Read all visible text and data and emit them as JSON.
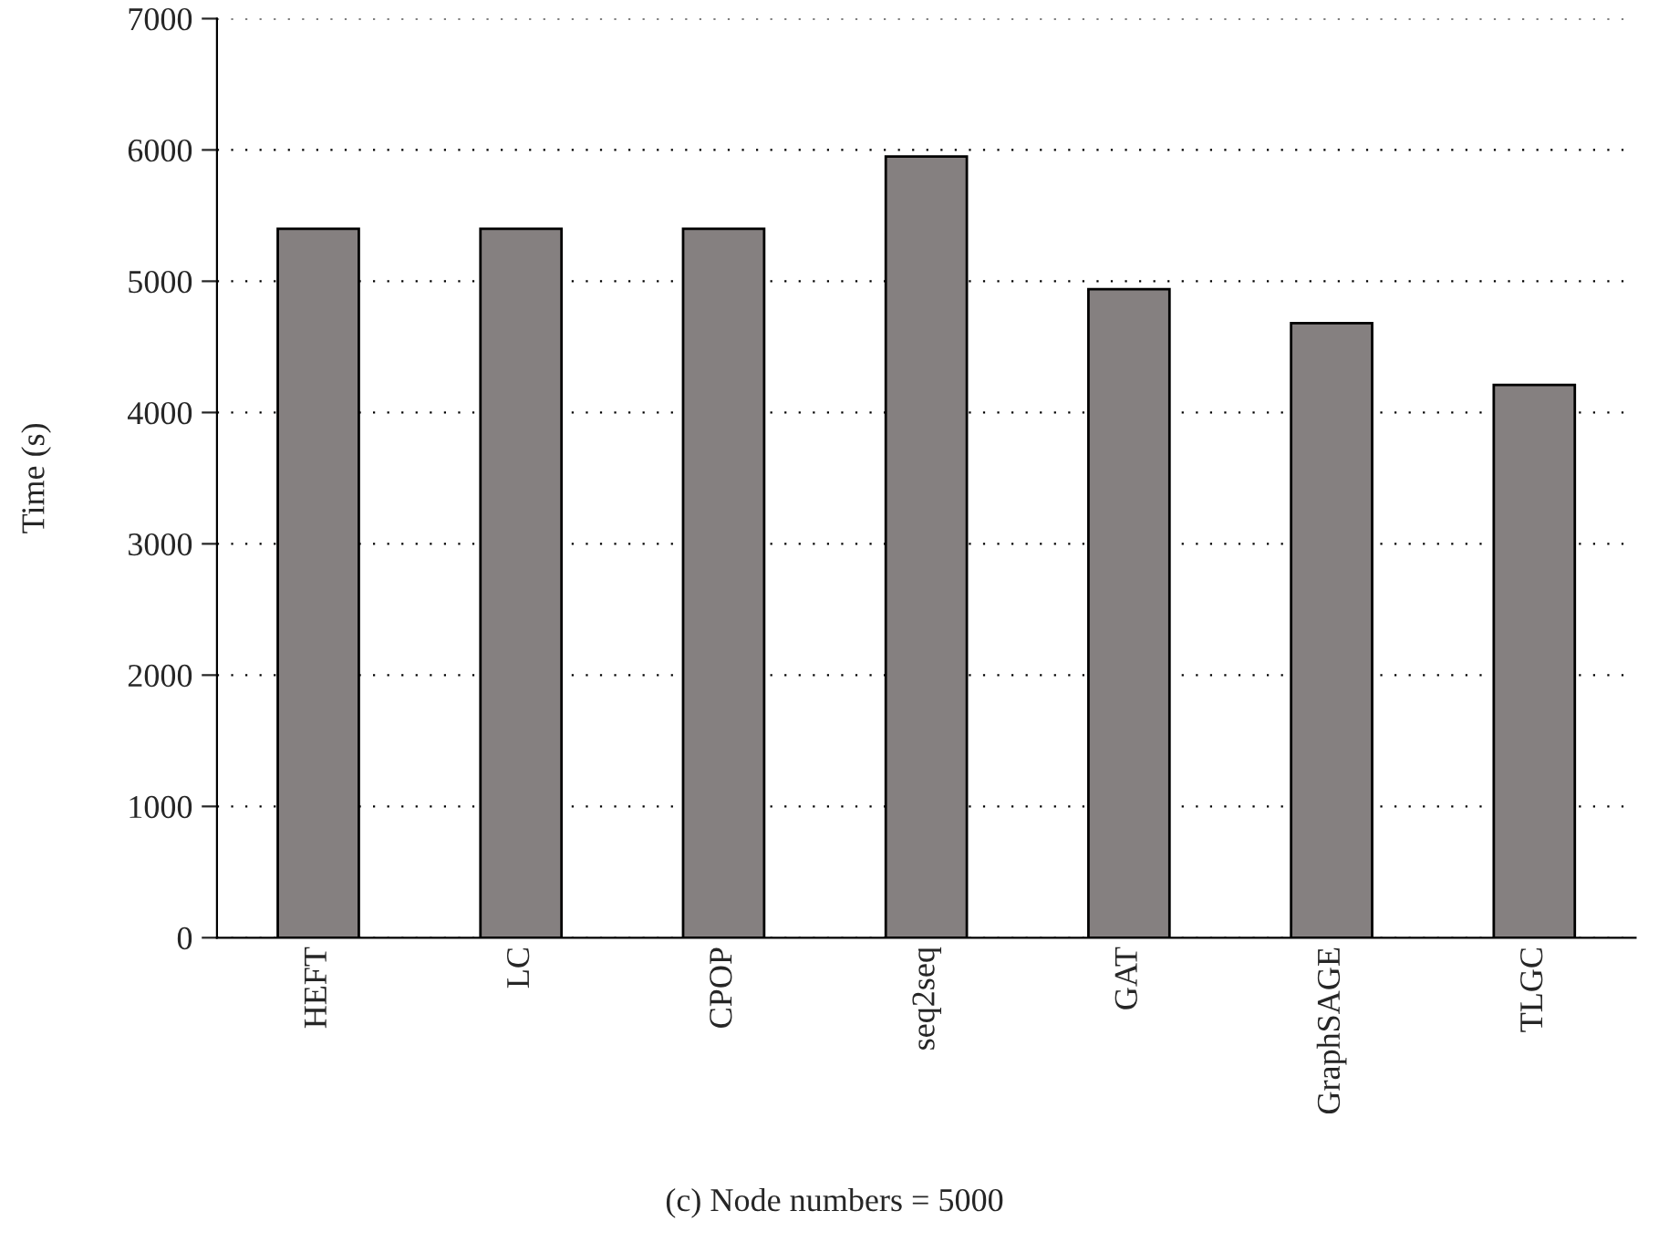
{
  "chart_data": {
    "type": "bar",
    "title": "(c) Node numbers = 5000",
    "ylabel": "Time (s)",
    "categories": [
      "HEFT",
      "LC",
      "CPOP",
      "seq2seq",
      "GAT",
      "GraphSAGE",
      "TLGC"
    ],
    "values": [
      5400,
      5400,
      5400,
      5950,
      4940,
      4680,
      4210
    ],
    "color": "#858080",
    "ylim": [
      0,
      7000
    ],
    "yticks": [
      0,
      1000,
      2000,
      3000,
      4000,
      5000,
      6000,
      7000
    ],
    "grid": "y"
  }
}
